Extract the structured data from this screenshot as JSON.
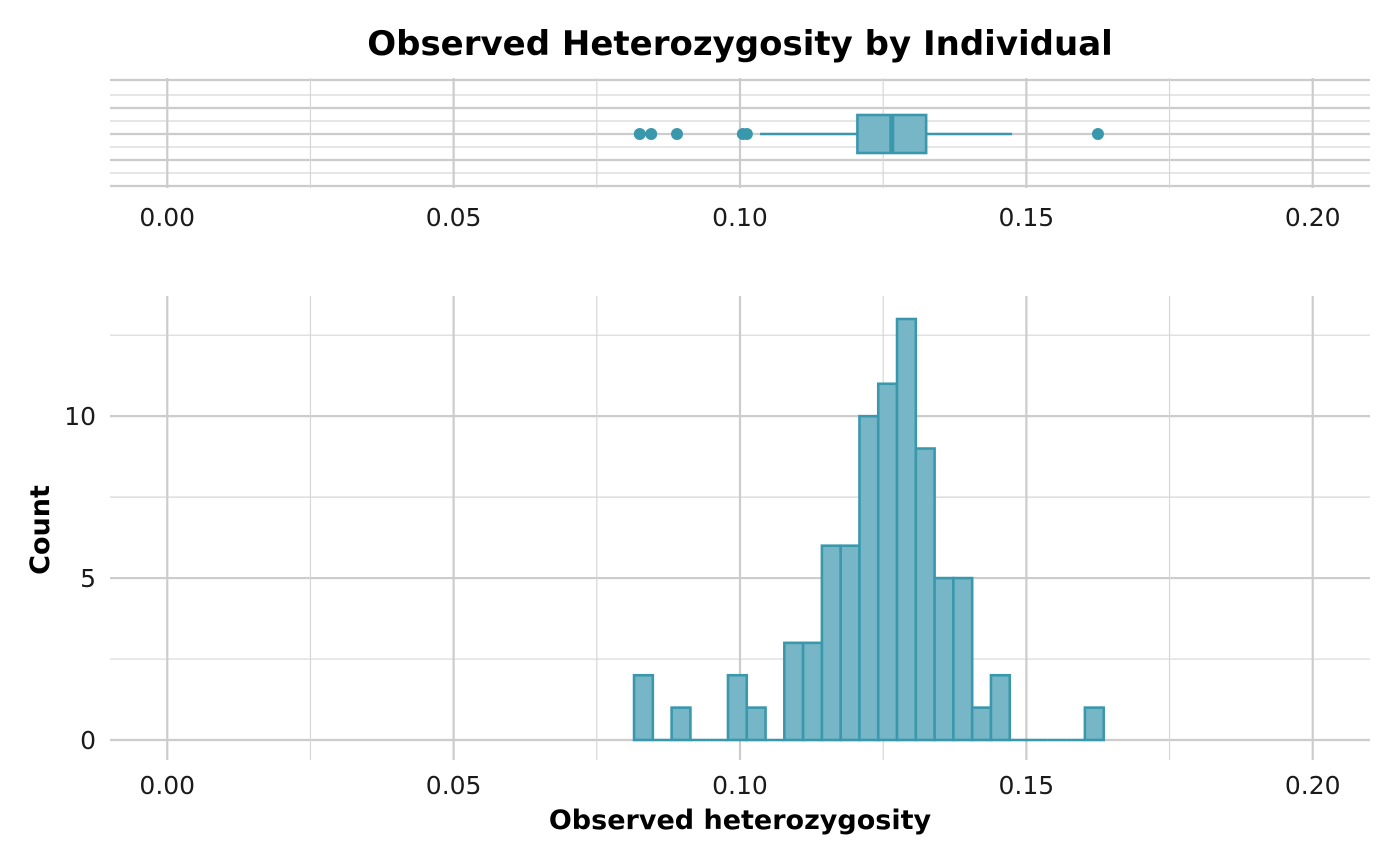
{
  "chart_data": [
    {
      "type": "box",
      "title": "Observed Heterozygosity by Individual",
      "x_ticks": [
        "0.00",
        "0.05",
        "0.10",
        "0.15",
        "0.20"
      ],
      "x_tick_values": [
        0.0,
        0.05,
        0.1,
        0.15,
        0.2
      ],
      "xlim": [
        -0.01,
        0.21
      ],
      "box": {
        "whisker_low": 0.1035,
        "q1": 0.1205,
        "median": 0.1265,
        "q3": 0.1325,
        "whisker_high": 0.1475
      },
      "outliers": [
        0.0825,
        0.0845,
        0.089,
        0.1005,
        0.1012,
        0.1625
      ],
      "grid": true
    },
    {
      "type": "bar",
      "xlabel": "Observed heterozygosity",
      "ylabel": "Count",
      "x_ticks": [
        "0.00",
        "0.05",
        "0.10",
        "0.15",
        "0.20"
      ],
      "x_tick_values": [
        0.0,
        0.05,
        0.1,
        0.15,
        0.2
      ],
      "y_ticks": [
        "0",
        "5",
        "10"
      ],
      "y_tick_values": [
        0,
        5,
        10
      ],
      "xlim": [
        -0.01,
        0.21
      ],
      "ylim": [
        0,
        13.7
      ],
      "bin_start": 0.0815,
      "bin_width": 0.00328,
      "values": [
        2,
        0,
        1,
        0,
        0,
        2,
        1,
        0,
        3,
        3,
        6,
        6,
        10,
        11,
        13,
        9,
        5,
        5,
        1,
        2,
        0,
        0,
        0,
        0,
        1
      ],
      "grid": true
    }
  ],
  "colors": {
    "fill": "#77b6c6",
    "stroke": "#3a98ad",
    "grid": "#cccccc"
  }
}
